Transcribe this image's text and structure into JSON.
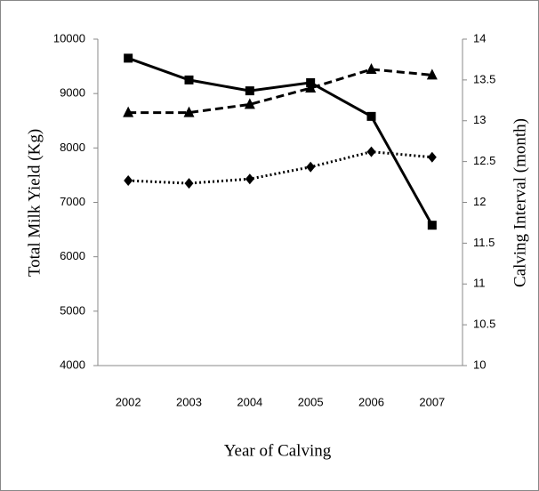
{
  "chart_data": {
    "type": "line",
    "x_label": "Year of Calving",
    "y_label": "Total Milk Yield (Kg)",
    "y2_label": "Calving Interval (month)",
    "categories": [
      "2002",
      "2003",
      "2004",
      "2005",
      "2006",
      "2007"
    ],
    "ylim": [
      4000,
      10000
    ],
    "yticks": [
      4000,
      5000,
      6000,
      7000,
      8000,
      9000,
      10000
    ],
    "y2lim": [
      10,
      14
    ],
    "y2ticks": [
      10,
      10.5,
      11,
      11.5,
      12,
      12.5,
      13,
      13.5,
      14
    ],
    "series": [
      {
        "color": "#000000",
        "line": "solid",
        "marker": "square",
        "values": [
          9650,
          9250,
          9050,
          9200,
          8580,
          6580
        ]
      },
      {
        "color": "#000000",
        "line": "dashed",
        "marker": "triangle",
        "axis": "y2",
        "values": [
          13.1,
          13.1,
          13.2,
          13.4,
          13.63,
          13.56
        ]
      },
      {
        "color": "#000000",
        "line": "dotted",
        "marker": "diamond",
        "values": [
          7400,
          7350,
          7430,
          7650,
          7930,
          7830
        ]
      }
    ]
  }
}
